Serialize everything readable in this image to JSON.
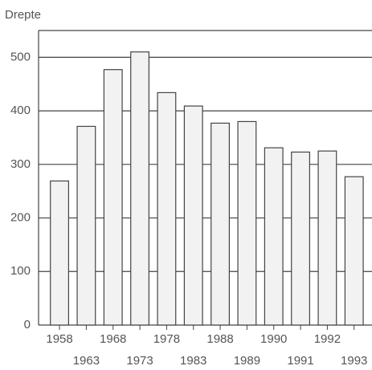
{
  "chart_data": {
    "type": "bar",
    "y_label": "Drepte",
    "categories": [
      "1958",
      "1963",
      "1968",
      "1973",
      "1978",
      "1983",
      "1988",
      "1989",
      "1990",
      "1991",
      "1992",
      "1993"
    ],
    "values": [
      269,
      371,
      477,
      510,
      434,
      409,
      377,
      380,
      331,
      323,
      325,
      277
    ],
    "color": "#f2f2f2",
    "ylim": [
      0,
      550
    ],
    "yticks": [
      0,
      100,
      200,
      300,
      400,
      500
    ],
    "grid": true
  }
}
